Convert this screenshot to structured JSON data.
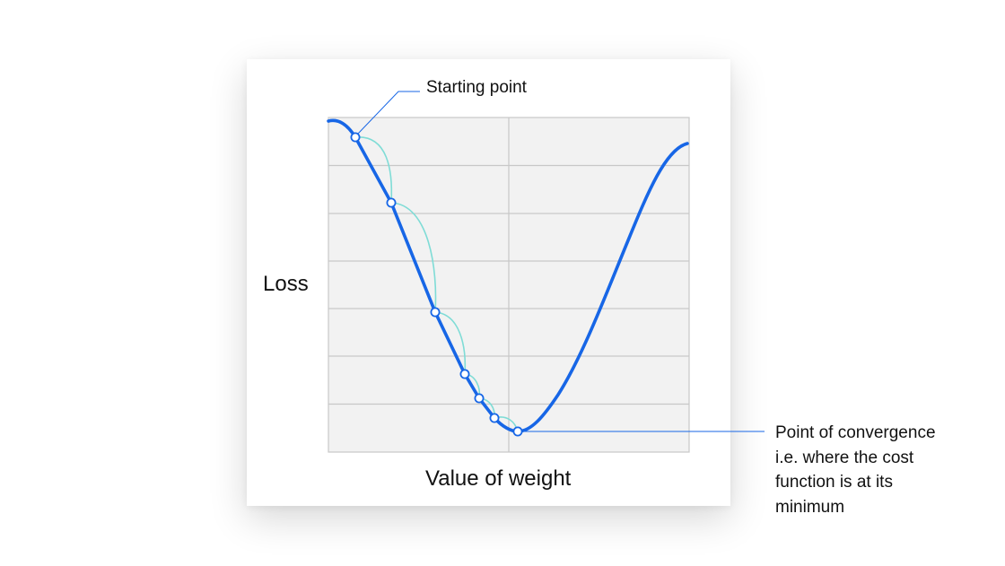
{
  "diagram": {
    "y_axis_label": "Loss",
    "x_axis_label": "Value of weight",
    "start_annotation": "Starting point",
    "convergence_annotation_lines": [
      "Point of convergence",
      "i.e. where the cost",
      "function is at its",
      "minimum"
    ],
    "colors": {
      "curve": "#1766e6",
      "step_arcs": "#7fdcd6",
      "grid_background": "#f2f2f2",
      "grid_lines": "#c8c8c8",
      "leader_lines": "#1766e6"
    },
    "gradient_steps": 7
  }
}
